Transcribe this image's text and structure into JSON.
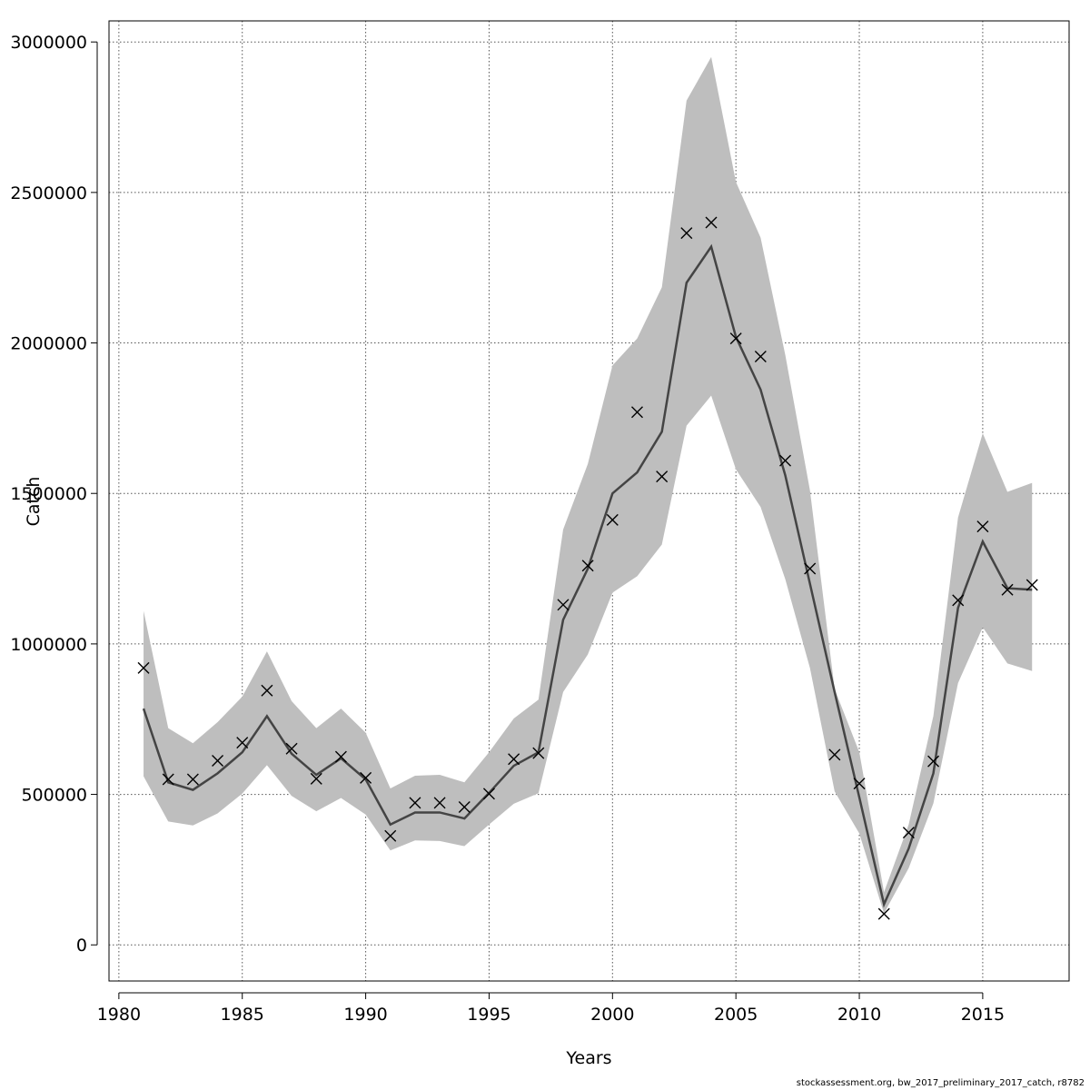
{
  "chart_data": {
    "type": "line",
    "title": "",
    "xlabel": "Years",
    "ylabel": "Catch",
    "xlim": [
      1979.6,
      2018.5
    ],
    "ylim": [
      -120000,
      3070000
    ],
    "x_ticks": [
      1980,
      1985,
      1990,
      1995,
      2000,
      2005,
      2010,
      2015
    ],
    "y_ticks": [
      0,
      500000,
      1000000,
      1500000,
      2000000,
      2500000,
      3000000
    ],
    "x_tick_labels": [
      "1980",
      "1985",
      "1990",
      "1995",
      "2000",
      "2005",
      "2010",
      "2015"
    ],
    "y_tick_labels": [
      "0",
      "500000",
      "1000000",
      "1500000",
      "2000000",
      "2500000",
      "3000000"
    ],
    "grid": true,
    "x": [
      1981,
      1982,
      1983,
      1984,
      1985,
      1986,
      1987,
      1988,
      1989,
      1990,
      1991,
      1992,
      1993,
      1994,
      1995,
      1996,
      1997,
      1998,
      1999,
      2000,
      2001,
      2002,
      2003,
      2004,
      2005,
      2006,
      2007,
      2008,
      2009,
      2010,
      2011,
      2012,
      2013,
      2014,
      2015,
      2016,
      2017
    ],
    "series": [
      {
        "type": "line",
        "values": [
          785000,
          540000,
          515000,
          570000,
          640000,
          760000,
          635000,
          565000,
          620000,
          550000,
          400000,
          440000,
          440000,
          420000,
          505000,
          595000,
          640000,
          1080000,
          1250000,
          1500000,
          1570000,
          1705000,
          2200000,
          2320000,
          2020000,
          1845000,
          1560000,
          1200000,
          840000,
          490000,
          135000,
          320000,
          570000,
          1120000,
          1340000,
          1185000,
          1180000
        ]
      },
      {
        "type": "scatter",
        "marker": "x",
        "values": [
          920000,
          550000,
          550000,
          612000,
          672000,
          845000,
          652000,
          552000,
          625000,
          555000,
          362000,
          472000,
          472000,
          458000,
          502000,
          617000,
          637000,
          1130000,
          1260000,
          1412000,
          1770000,
          1556000,
          2365000,
          2400000,
          2015000,
          1955000,
          1609000,
          1250000,
          632000,
          536000,
          103000,
          373000,
          610000,
          1145000,
          1390000,
          1180000,
          1196000
        ]
      },
      {
        "type": "band",
        "lower": [
          560000,
          410000,
          397000,
          437000,
          503000,
          597000,
          495000,
          444000,
          488000,
          433000,
          314000,
          347000,
          345000,
          328000,
          400000,
          469000,
          504000,
          840000,
          965000,
          1170000,
          1225000,
          1330000,
          1725000,
          1825000,
          1580000,
          1455000,
          1215000,
          920000,
          510000,
          370000,
          105000,
          255000,
          470000,
          870000,
          1055000,
          935000,
          910000
        ],
        "upper": [
          1110000,
          720000,
          670000,
          740000,
          825000,
          975000,
          810000,
          720000,
          785000,
          705000,
          520000,
          562000,
          565000,
          540000,
          640000,
          752000,
          815000,
          1380000,
          1598000,
          1925000,
          2015000,
          2185000,
          2805000,
          2950000,
          2535000,
          2350000,
          1960000,
          1510000,
          850000,
          640000,
          175000,
          400000,
          760000,
          1420000,
          1700000,
          1505000,
          1535000
        ]
      }
    ],
    "colors": {
      "band": "#bebebe",
      "line": "#444444",
      "marker": "#000000",
      "grid": "#555555"
    }
  },
  "footer": {
    "credit": "stockassessment.org, bw_2017_preliminary_2017_catch, r8782"
  }
}
